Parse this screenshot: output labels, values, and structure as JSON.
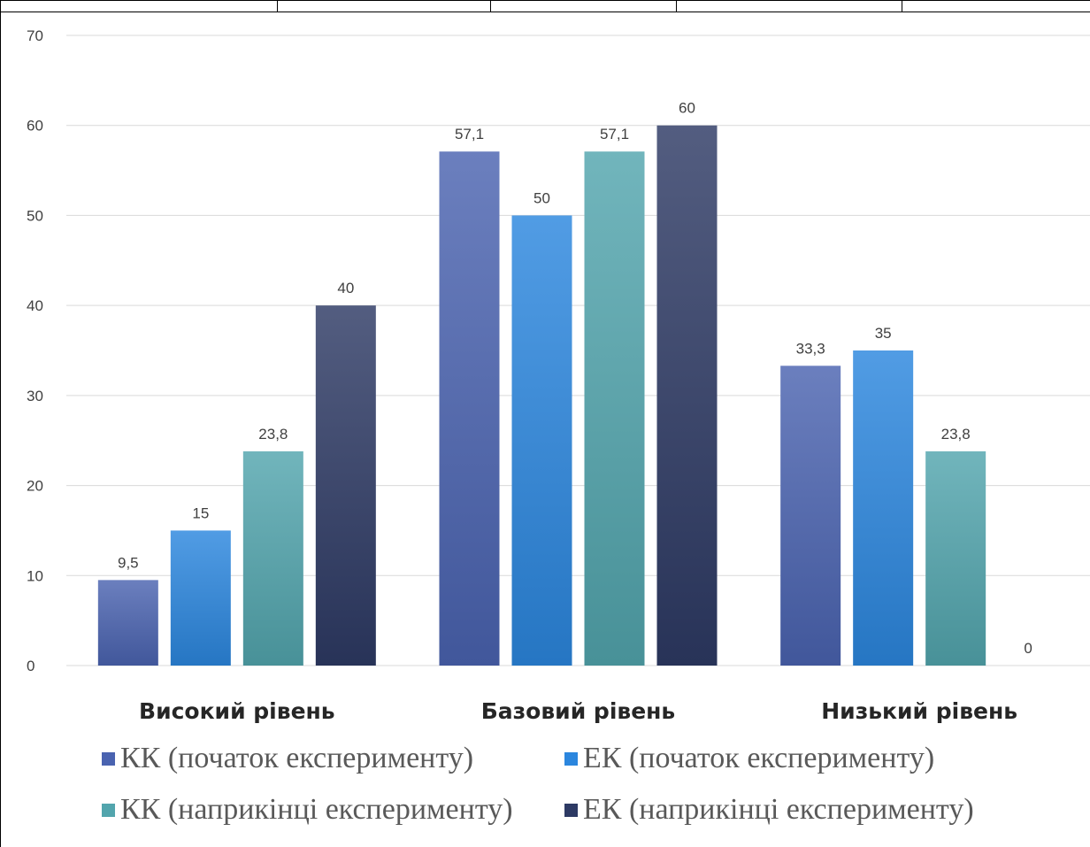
{
  "chart_data": {
    "type": "bar",
    "categories": [
      "Високий рівень",
      "Базовий рівень",
      "Низький рівень"
    ],
    "series": [
      {
        "name": "КК (початок експерименту)",
        "values": [
          9.5,
          57.1,
          33.3
        ],
        "labels": [
          "9,5",
          "57,1",
          "33,3"
        ],
        "color": "#4a63b0"
      },
      {
        "name": "ЕК (початок експерименту)",
        "values": [
          15,
          50,
          35
        ],
        "labels": [
          "15",
          "50",
          "35"
        ],
        "color": "#2b86de"
      },
      {
        "name": "КК (наприкінці експерименту)",
        "values": [
          23.8,
          57.1,
          23.8
        ],
        "labels": [
          "23,8",
          "57,1",
          "23,8"
        ],
        "color": "#52a5ad"
      },
      {
        "name": "ЕК (наприкінці експерименту)",
        "values": [
          40,
          60,
          0
        ],
        "labels": [
          "40",
          "60",
          "0"
        ],
        "color": "#2d3a64"
      }
    ],
    "yticks": [
      "0",
      "10",
      "20",
      "30",
      "40",
      "50",
      "60",
      "70"
    ],
    "ylim": [
      0,
      70
    ],
    "grid": true,
    "legend_position": "bottom",
    "title": "",
    "xlabel": "",
    "ylabel": ""
  }
}
